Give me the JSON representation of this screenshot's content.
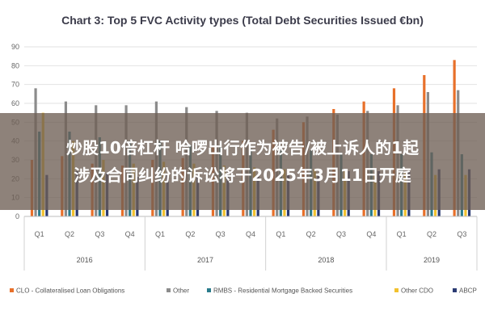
{
  "chart_data": {
    "type": "bar",
    "title": "Chart 3: Top 5 FVC Activity types (Total Debt Securities Issued €bn)",
    "ylim": [
      0,
      90
    ],
    "yticks": [
      "0",
      "10",
      "20",
      "30",
      "40",
      "50",
      "60",
      "70",
      "80",
      "90"
    ],
    "categories": [
      "Q1",
      "Q2",
      "Q3",
      "Q4",
      "Q1",
      "Q2",
      "Q3",
      "Q4",
      "Q1",
      "Q2",
      "Q3",
      "Q4",
      "Q1",
      "Q2",
      "Q3"
    ],
    "groups": [
      {
        "label": "2016",
        "count": 4
      },
      {
        "label": "2017",
        "count": 4
      },
      {
        "label": "2018",
        "count": 4
      },
      {
        "label": "2019",
        "count": 3
      }
    ],
    "series": [
      {
        "name": "CLO - Collateralised Loan Obligations",
        "color": "#e8702a",
        "values": [
          30,
          32,
          28,
          27,
          30,
          31,
          37,
          40,
          46,
          50,
          57,
          61,
          68,
          75,
          83
        ]
      },
      {
        "name": "Other",
        "color": "#8c8c8c",
        "values": [
          68,
          61,
          59,
          59,
          61,
          58,
          56,
          55,
          52,
          53,
          54,
          56,
          59,
          66,
          67
        ]
      },
      {
        "name": "RMBS - Residential Mortgage Backed Securities",
        "color": "#2a7c8c",
        "values": [
          45,
          45,
          42,
          40,
          40,
          38,
          37,
          36,
          35,
          35,
          34,
          33,
          33,
          34,
          33
        ]
      },
      {
        "name": "Other CDO",
        "color": "#f2c12e",
        "values": [
          55,
          40,
          30,
          28,
          29,
          28,
          27,
          26,
          25,
          25,
          24,
          23,
          23,
          22,
          22
        ]
      },
      {
        "name": "ABCP",
        "color": "#2b3b73",
        "values": [
          22,
          24,
          23,
          21,
          22,
          22,
          21,
          22,
          23,
          22,
          24,
          24,
          24,
          25,
          25
        ]
      }
    ],
    "legend": "bottom",
    "grid": true
  },
  "overlay": {
    "line1": "炒股10倍杠杆 哈啰出行作为被告/被上诉人的1起",
    "line2": "涉及合同纠纷的诉讼将于2025年3月11日开庭"
  }
}
